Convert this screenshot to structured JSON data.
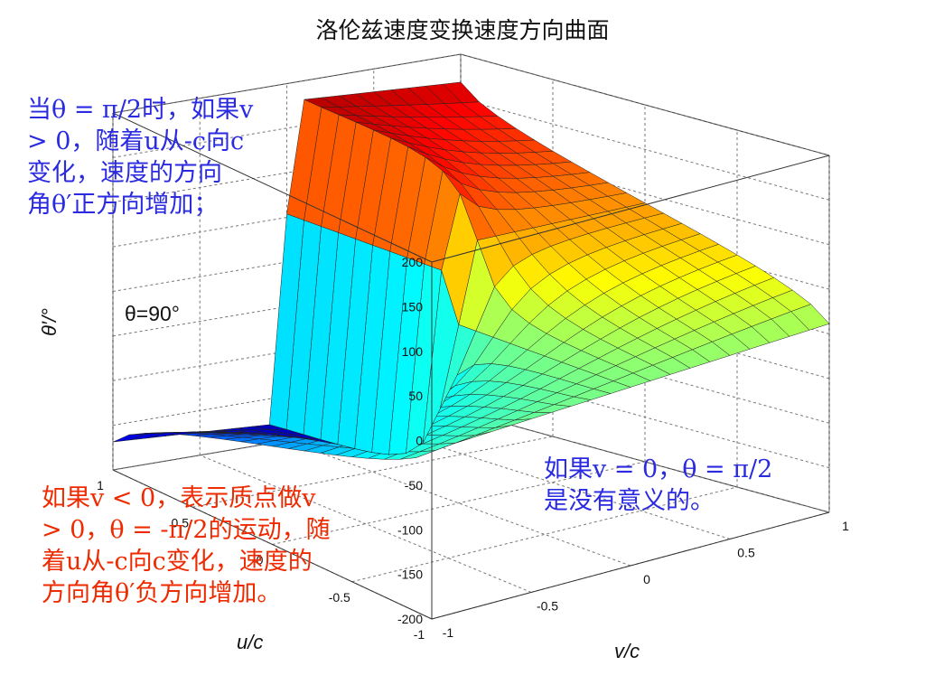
{
  "chart_data": {
    "type": "surface",
    "title": "洛伦兹速度变换速度方向曲面",
    "xlabel": "u/c",
    "ylabel": "v/c",
    "zlabel": "θ′/°",
    "x_ticks": [
      "-1",
      "-0.5",
      "0",
      "0.5",
      "1"
    ],
    "y_ticks": [
      "-1",
      "-0.5",
      "0",
      "0.5",
      "1"
    ],
    "z_ticks": [
      "-200",
      "-150",
      "-100",
      "-50",
      "0",
      "50",
      "100",
      "150",
      "200"
    ],
    "xlim": [
      -1,
      1
    ],
    "ylim": [
      -1,
      1
    ],
    "zlim": [
      -200,
      200
    ],
    "grid": true,
    "colormap": "jet",
    "annotation_theta": "θ=90°"
  },
  "notes": {
    "top_left": {
      "lines": [
        [
          "当θ = π/2时，如果v"
        ],
        [
          "> 0，随着u从-c向c"
        ],
        [
          "变化，速度的方向"
        ],
        [
          "角θ′正方向增加；"
        ]
      ]
    },
    "bottom_left": {
      "lines": [
        [
          "如果v < 0，表示质点做v"
        ],
        [
          "> 0，θ = -π/2的运动，随"
        ],
        [
          "着u从-c向c变化，速度的"
        ],
        [
          "方向角θ′负方向增加。"
        ]
      ]
    },
    "bottom_right": {
      "lines": [
        [
          "如果v = 0，θ = π/2"
        ],
        [
          "是没有意义的。"
        ]
      ]
    }
  }
}
